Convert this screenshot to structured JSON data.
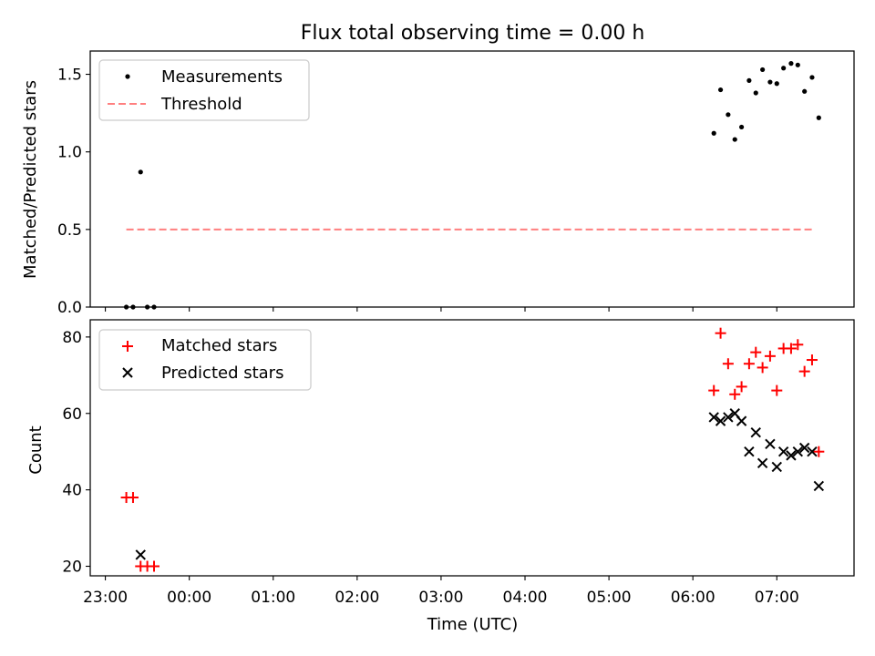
{
  "chart_data": [
    {
      "type": "scatter",
      "title": "Flux total observing time = 0.00 h",
      "xlabel": "",
      "ylabel": "Matched/Predicted stars",
      "ylim": [
        0.0,
        1.65
      ],
      "xlim_hours": [
        22.82,
        31.92
      ],
      "yticks": [
        0.0,
        0.5,
        1.0,
        1.5
      ],
      "ytick_labels": [
        "0.0",
        "0.5",
        "1.0",
        "1.5"
      ],
      "legend": [
        "Measurements",
        "Threshold"
      ],
      "legend_position": "upper-left",
      "series": [
        {
          "name": "Measurements",
          "marker": "dot",
          "color": "#000000",
          "points": [
            [
              23.25,
              0.0
            ],
            [
              23.33,
              0.0
            ],
            [
              23.42,
              0.87
            ],
            [
              23.5,
              0.0
            ],
            [
              23.58,
              0.0
            ],
            [
              30.25,
              1.12
            ],
            [
              30.33,
              1.4
            ],
            [
              30.42,
              1.24
            ],
            [
              30.5,
              1.08
            ],
            [
              30.58,
              1.16
            ],
            [
              30.67,
              1.46
            ],
            [
              30.75,
              1.38
            ],
            [
              30.83,
              1.53
            ],
            [
              30.92,
              1.45
            ],
            [
              31.0,
              1.44
            ],
            [
              31.08,
              1.54
            ],
            [
              31.17,
              1.57
            ],
            [
              31.25,
              1.56
            ],
            [
              31.33,
              1.39
            ],
            [
              31.42,
              1.48
            ],
            [
              31.5,
              1.22
            ]
          ]
        },
        {
          "name": "Threshold",
          "marker": "dashed-line",
          "color": "#ff7f7f",
          "points": [
            [
              23.25,
              0.5
            ],
            [
              31.45,
              0.5
            ]
          ]
        }
      ]
    },
    {
      "type": "scatter",
      "title": "",
      "xlabel": "Time (UTC)",
      "ylabel": "Count",
      "ylim": [
        17.5,
        84.5
      ],
      "xlim_hours": [
        22.82,
        31.92
      ],
      "yticks": [
        20,
        40,
        60,
        80
      ],
      "ytick_labels": [
        "20",
        "40",
        "60",
        "80"
      ],
      "xticks_hours": [
        23,
        24,
        25,
        26,
        27,
        28,
        29,
        30,
        31
      ],
      "xtick_labels": [
        "23:00",
        "00:00",
        "01:00",
        "02:00",
        "03:00",
        "04:00",
        "05:00",
        "06:00",
        "07:00"
      ],
      "legend": [
        "Matched stars",
        "Predicted stars"
      ],
      "legend_position": "upper-left",
      "series": [
        {
          "name": "Matched stars",
          "marker": "plus",
          "color": "#ff0000",
          "points": [
            [
              23.25,
              38
            ],
            [
              23.33,
              38
            ],
            [
              23.42,
              20
            ],
            [
              23.5,
              20
            ],
            [
              23.58,
              20
            ],
            [
              30.25,
              66
            ],
            [
              30.33,
              81
            ],
            [
              30.42,
              73
            ],
            [
              30.5,
              65
            ],
            [
              30.58,
              67
            ],
            [
              30.67,
              73
            ],
            [
              30.75,
              76
            ],
            [
              30.83,
              72
            ],
            [
              30.92,
              75
            ],
            [
              31.0,
              66
            ],
            [
              31.08,
              77
            ],
            [
              31.17,
              77
            ],
            [
              31.25,
              78
            ],
            [
              31.33,
              71
            ],
            [
              31.42,
              74
            ],
            [
              31.5,
              50
            ]
          ]
        },
        {
          "name": "Predicted stars",
          "marker": "x",
          "color": "#000000",
          "points": [
            [
              23.42,
              23
            ],
            [
              30.25,
              59
            ],
            [
              30.33,
              58
            ],
            [
              30.42,
              59
            ],
            [
              30.5,
              60
            ],
            [
              30.58,
              58
            ],
            [
              30.67,
              50
            ],
            [
              30.75,
              55
            ],
            [
              30.83,
              47
            ],
            [
              30.92,
              52
            ],
            [
              31.0,
              46
            ],
            [
              31.08,
              50
            ],
            [
              31.17,
              49
            ],
            [
              31.25,
              50
            ],
            [
              31.33,
              51
            ],
            [
              31.42,
              50
            ],
            [
              31.5,
              41
            ]
          ]
        }
      ]
    }
  ]
}
